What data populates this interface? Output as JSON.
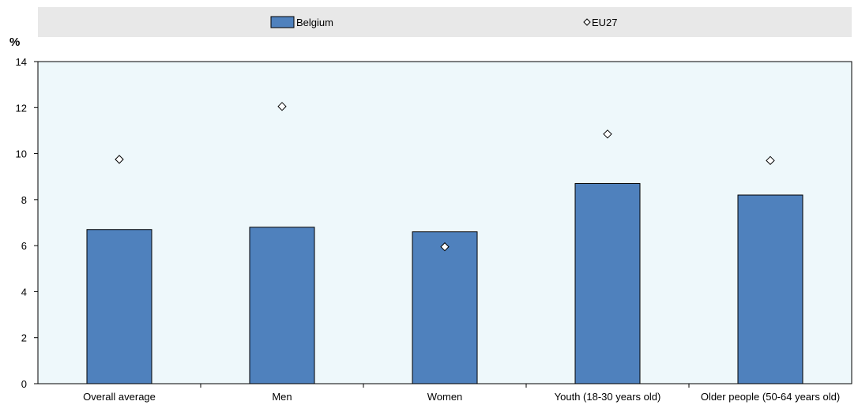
{
  "chart_data": {
    "type": "bar",
    "unit_label": "%",
    "categories": [
      "Overall average",
      "Men",
      "Women",
      "Youth (18-30 years old)",
      "Older people (50-64 years old)"
    ],
    "series": [
      {
        "name": "Belgium",
        "type": "bar",
        "color": "#4f81bd",
        "values": [
          6.7,
          6.8,
          6.6,
          8.7,
          8.2
        ]
      },
      {
        "name": "EU27",
        "type": "scatter",
        "marker": "diamond-open",
        "values": [
          9.75,
          12.05,
          5.95,
          10.85,
          9.7
        ]
      }
    ],
    "ylim": [
      0,
      14
    ],
    "yticks": [
      0,
      2,
      4,
      6,
      8,
      10,
      12,
      14
    ],
    "legend_position": "top",
    "grid": false,
    "colors": {
      "plot_background": "#eef8fb",
      "legend_background": "#e8e8e8",
      "bar": "#4f81bd",
      "bar_edge": "#000000",
      "marker_fill": "#ffffff",
      "marker_edge": "#000000"
    }
  }
}
